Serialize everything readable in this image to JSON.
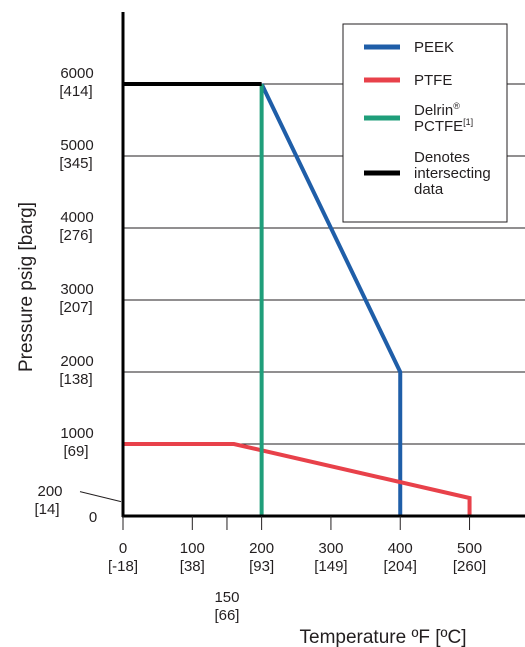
{
  "chart_data": {
    "type": "line",
    "xlabel": "Temperature ºF [ºC]",
    "ylabel": "Pressure psig [barg]",
    "xlim": [
      0,
      580
    ],
    "ylim": [
      0,
      7000
    ],
    "grid": {
      "horizontal": true,
      "vertical": false
    },
    "legend_position": "top-right",
    "x_ticks": [
      {
        "value": 0,
        "label": "0",
        "sublabel": "[-18]",
        "row": 1
      },
      {
        "value": 100,
        "label": "100",
        "sublabel": "[38]",
        "row": 1
      },
      {
        "value": 150,
        "label": "150",
        "sublabel": "[66]",
        "row": 2
      },
      {
        "value": 200,
        "label": "200",
        "sublabel": "[93]",
        "row": 1
      },
      {
        "value": 300,
        "label": "300",
        "sublabel": "[149]",
        "row": 1
      },
      {
        "value": 400,
        "label": "400",
        "sublabel": "[204]",
        "row": 1
      },
      {
        "value": 500,
        "label": "500",
        "sublabel": "[260]",
        "row": 1
      }
    ],
    "y_ticks": [
      {
        "value": 0,
        "label": "0",
        "sublabel": ""
      },
      {
        "value": 200,
        "label": "200",
        "sublabel": "[14]",
        "leader": true
      },
      {
        "value": 1000,
        "label": "1000",
        "sublabel": "[69]"
      },
      {
        "value": 2000,
        "label": "2000",
        "sublabel": "[138]"
      },
      {
        "value": 3000,
        "label": "3000",
        "sublabel": "[207]"
      },
      {
        "value": 4000,
        "label": "4000",
        "sublabel": "[276]"
      },
      {
        "value": 5000,
        "label": "5000",
        "sublabel": "[345]"
      },
      {
        "value": 6000,
        "label": "6000",
        "sublabel": "[414]"
      }
    ],
    "series": [
      {
        "name": "PEEK",
        "color": "#1f5ea8",
        "points": [
          [
            200,
            6000
          ],
          [
            400,
            2000
          ],
          [
            400,
            0
          ]
        ]
      },
      {
        "name": "PTFE",
        "color": "#e8414a",
        "points": [
          [
            0,
            1000
          ],
          [
            160,
            1000
          ],
          [
            500,
            250
          ],
          [
            500,
            0
          ]
        ]
      },
      {
        "name": "Delrin® PCTFE[1]",
        "color": "#1f9e7a",
        "points": [
          [
            200,
            6000
          ],
          [
            200,
            0
          ]
        ]
      },
      {
        "name": "Denotes intersecting data",
        "color": "#000000",
        "points": [
          [
            0,
            6000
          ],
          [
            200,
            6000
          ]
        ]
      }
    ],
    "legend": [
      {
        "lines": [
          "PEEK"
        ],
        "color": "#1f5ea8"
      },
      {
        "lines": [
          "PTFE"
        ],
        "color": "#e8414a"
      },
      {
        "lines": [
          "Delrin",
          "PCTFE"
        ],
        "sup": [
          "®",
          "[1]"
        ],
        "color": "#1f9e7a"
      },
      {
        "lines": [
          "Denotes",
          "intersecting",
          "data"
        ],
        "color": "#000000"
      }
    ]
  }
}
